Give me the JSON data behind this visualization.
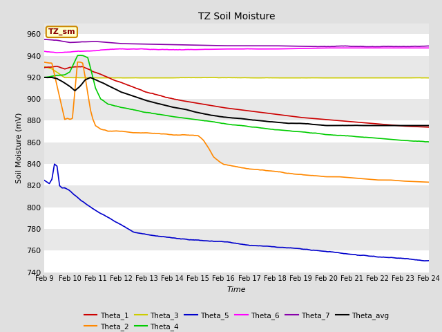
{
  "title": "TZ Soil Moisture",
  "xlabel": "Time",
  "ylabel": "Soil Moisture (mV)",
  "ylim": [
    740,
    970
  ],
  "xlim": [
    0,
    15
  ],
  "x_tick_labels": [
    "Feb 9",
    "Feb 10",
    "Feb 11",
    "Feb 12",
    "Feb 13",
    "Feb 14",
    "Feb 15",
    "Feb 16",
    "Feb 17",
    "Feb 18",
    "Feb 19",
    "Feb 20",
    "Feb 21",
    "Feb 22",
    "Feb 23",
    "Feb 24"
  ],
  "legend_label": "TZ_sm",
  "series_colors": {
    "Theta_1": "#cc0000",
    "Theta_2": "#ff8800",
    "Theta_3": "#cccc00",
    "Theta_4": "#00cc00",
    "Theta_5": "#0000cc",
    "Theta_6": "#ff00ff",
    "Theta_7": "#8800aa",
    "Theta_avg": "#000000"
  },
  "bg_color": "#e8e8e8",
  "grid_color": "#ffffff",
  "fig_color": "#e0e0e0"
}
